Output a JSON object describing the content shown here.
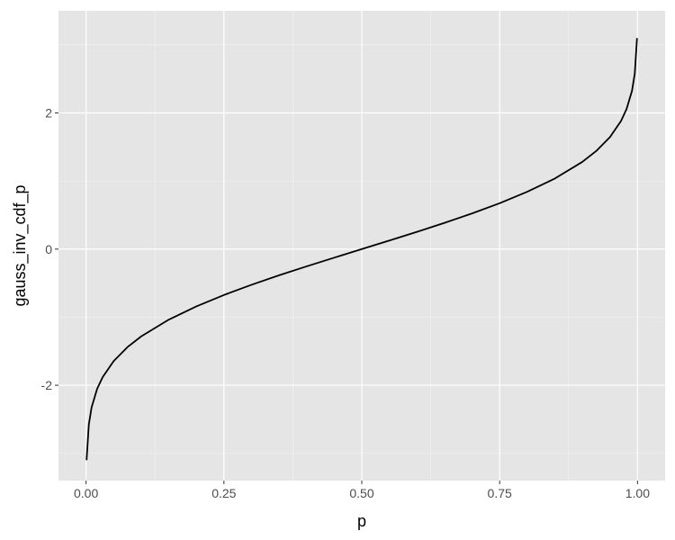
{
  "chart_data": {
    "type": "line",
    "xlabel": "p",
    "ylabel": "gauss_inv_cdf_p",
    "xlim": [
      -0.05,
      1.05
    ],
    "ylim": [
      -3.4,
      3.5
    ],
    "x_ticks": [
      0.0,
      0.25,
      0.5,
      0.75,
      1.0
    ],
    "x_tick_labels": [
      "0.00",
      "0.25",
      "0.50",
      "0.75",
      "1.00"
    ],
    "y_ticks": [
      -2,
      0,
      2
    ],
    "y_tick_labels": [
      "-2",
      "0",
      "2"
    ],
    "x_minor_ticks": [
      0.125,
      0.375,
      0.625,
      0.875
    ],
    "y_minor_ticks": [
      -3,
      -1,
      1,
      3
    ],
    "grid": true,
    "series": [
      {
        "color": "#000000",
        "x": [
          0.001,
          0.005,
          0.01,
          0.02,
          0.03,
          0.05,
          0.075,
          0.1,
          0.15,
          0.2,
          0.25,
          0.3,
          0.35,
          0.4,
          0.45,
          0.5,
          0.55,
          0.6,
          0.65,
          0.7,
          0.75,
          0.8,
          0.85,
          0.9,
          0.925,
          0.95,
          0.97,
          0.98,
          0.99,
          0.995,
          0.999
        ],
        "y": [
          -3.09,
          -2.576,
          -2.326,
          -2.054,
          -1.881,
          -1.645,
          -1.44,
          -1.282,
          -1.036,
          -0.842,
          -0.674,
          -0.524,
          -0.385,
          -0.253,
          -0.126,
          0.0,
          0.126,
          0.253,
          0.385,
          0.524,
          0.674,
          0.842,
          1.036,
          1.282,
          1.44,
          1.645,
          1.881,
          2.054,
          2.326,
          2.576,
          3.09
        ]
      }
    ]
  }
}
